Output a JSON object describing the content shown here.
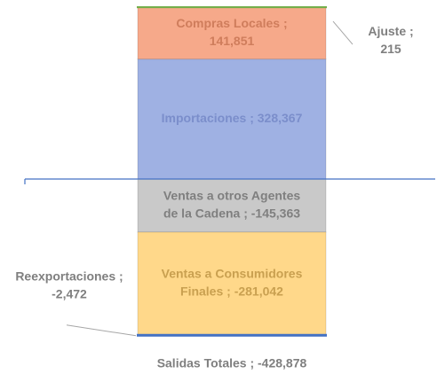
{
  "chart_data": {
    "type": "bar",
    "stacked": true,
    "series": [
      {
        "label": [
          "Importaciones ;  328,367"
        ],
        "value": 328367,
        "color": "#9fb1e3",
        "label_color": "#7b8ecb"
      },
      {
        "label": [
          "Compras Locales ;",
          "141,851"
        ],
        "value": 141851,
        "color": "#f6a98a",
        "label_color": "#cf7d5c"
      },
      {
        "label": [
          "Ajuste ;",
          "215"
        ],
        "value": 215,
        "color": "#70ad47",
        "label_color": "#7f7f7f",
        "callout": "right"
      },
      {
        "label": [
          "Ventas a otros Agentes",
          "de la Cadena ; -145,363"
        ],
        "value": -145363,
        "color": "#c9c9c9",
        "label_color": "#7f7f7f"
      },
      {
        "label": [
          "Ventas a Consumidores",
          "Finales ; -281,042"
        ],
        "value": -281042,
        "color": "#ffd88a",
        "label_color": "#c9a050"
      },
      {
        "label": [
          "Reexportaciones ;",
          "-2,472"
        ],
        "value": -2472,
        "color": "#4472c4",
        "label_color": "#7f7f7f",
        "callout": "left"
      }
    ],
    "total": {
      "value": -428878,
      "label": "Salidas Totales ; -428,878"
    },
    "ylim": [
      -490000,
      490000
    ]
  }
}
